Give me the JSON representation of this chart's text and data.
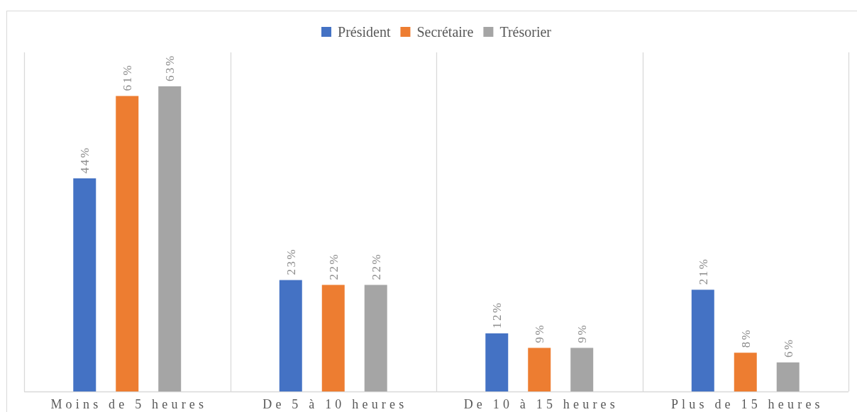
{
  "chart_data": {
    "type": "bar",
    "categories": [
      "Moins de 5 heures",
      "De 5 à 10 heures",
      "De 10 à 15 heures",
      "Plus de 15 heures"
    ],
    "series": [
      {
        "name": "Président",
        "color": "#4472c4",
        "values": [
          44,
          23,
          12,
          21
        ],
        "value_labels": [
          "44%",
          "23%",
          "12%",
          "21%"
        ]
      },
      {
        "name": "Secrétaire",
        "color": "#ed7d31",
        "values": [
          61,
          22,
          9,
          8
        ],
        "value_labels": [
          "61%",
          "22%",
          "9%",
          "8%"
        ]
      },
      {
        "name": "Trésorier",
        "color": "#a5a5a5",
        "values": [
          63,
          22,
          9,
          6
        ],
        "value_labels": [
          "63%",
          "22%",
          "9%",
          "6%"
        ]
      }
    ],
    "ylim": [
      0,
      70
    ],
    "tick_labels": "x",
    "grid": "x",
    "legend": "top"
  }
}
